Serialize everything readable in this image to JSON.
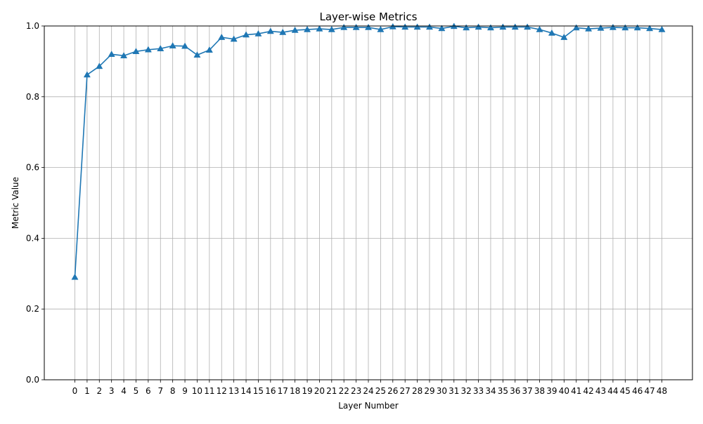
{
  "chart_data": {
    "type": "line",
    "title": "Layer-wise Metrics",
    "xlabel": "Layer Number",
    "ylabel": "Metric Value",
    "x": [
      0,
      1,
      2,
      3,
      4,
      5,
      6,
      7,
      8,
      9,
      10,
      11,
      12,
      13,
      14,
      15,
      16,
      17,
      18,
      19,
      20,
      21,
      22,
      23,
      24,
      25,
      26,
      27,
      28,
      29,
      30,
      31,
      32,
      33,
      34,
      35,
      36,
      37,
      38,
      39,
      40,
      41,
      42,
      43,
      44,
      45,
      46,
      47,
      48
    ],
    "series": [
      {
        "values": [
          0.29,
          0.862,
          0.886,
          0.92,
          0.916,
          0.928,
          0.933,
          0.936,
          0.944,
          0.943,
          0.918,
          0.932,
          0.968,
          0.963,
          0.975,
          0.978,
          0.985,
          0.982,
          0.988,
          0.99,
          0.992,
          0.99,
          0.996,
          0.996,
          0.996,
          0.99,
          0.998,
          0.997,
          0.997,
          0.997,
          0.993,
          0.999,
          0.995,
          0.997,
          0.995,
          0.997,
          0.997,
          0.997,
          0.99,
          0.98,
          0.968,
          0.995,
          0.992,
          0.994,
          0.996,
          0.995,
          0.995,
          0.993,
          0.99
        ],
        "color": "#1f77b4",
        "marker": "triangle-up"
      }
    ],
    "xticks": [
      "0",
      "1",
      "2",
      "3",
      "4",
      "5",
      "6",
      "7",
      "8",
      "9",
      "10",
      "11",
      "12",
      "13",
      "14",
      "15",
      "16",
      "17",
      "18",
      "19",
      "20",
      "21",
      "22",
      "23",
      "24",
      "25",
      "26",
      "27",
      "28",
      "29",
      "30",
      "31",
      "32",
      "33",
      "34",
      "35",
      "36",
      "37",
      "38",
      "39",
      "40",
      "41",
      "42",
      "43",
      "44",
      "45",
      "46",
      "47",
      "48"
    ],
    "yticks": [
      "0.0",
      "0.2",
      "0.4",
      "0.6",
      "0.8",
      "1.0"
    ],
    "ytick_values": [
      0.0,
      0.2,
      0.4,
      0.6,
      0.8,
      1.0
    ],
    "xlim": [
      -2.5,
      50.5
    ],
    "ylim": [
      0.0,
      1.0
    ],
    "grid": true,
    "grid_color": "#b0b0b0"
  }
}
